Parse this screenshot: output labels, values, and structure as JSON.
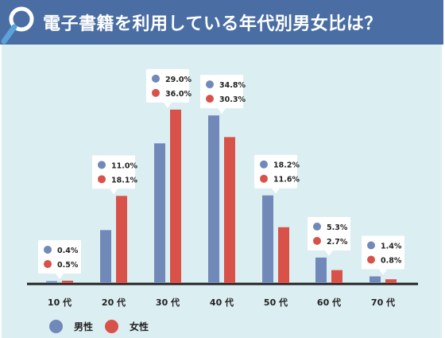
{
  "title": "電子書籍を利用している年代別男女比は？",
  "colors": {
    "header": "#4a6da3",
    "background": "#dbeef2",
    "male": "#7189b9",
    "female": "#d9524a",
    "axis": "#222222"
  },
  "chart_data": {
    "type": "bar",
    "categories": [
      "10 代",
      "20 代",
      "30 代",
      "40 代",
      "50 代",
      "60 代",
      "70 代"
    ],
    "series": [
      {
        "name": "男性",
        "values": [
          0.4,
          11.0,
          29.0,
          34.8,
          18.2,
          5.3,
          1.4
        ]
      },
      {
        "name": "女性",
        "values": [
          0.5,
          18.1,
          36.0,
          30.3,
          11.6,
          2.7,
          0.8
        ]
      }
    ],
    "data_labels": [
      [
        "0.4%",
        "0.5%"
      ],
      [
        "11.0%",
        "18.1%"
      ],
      [
        "29.0%",
        "36.0%"
      ],
      [
        "34.8%",
        "30.3%"
      ],
      [
        "18.2%",
        "11.6%"
      ],
      [
        "5.3%",
        "2.7%"
      ],
      [
        "1.4%",
        "0.8%"
      ]
    ],
    "ylim": [
      0,
      40
    ],
    "grid": false,
    "legend": "bottom-left"
  }
}
